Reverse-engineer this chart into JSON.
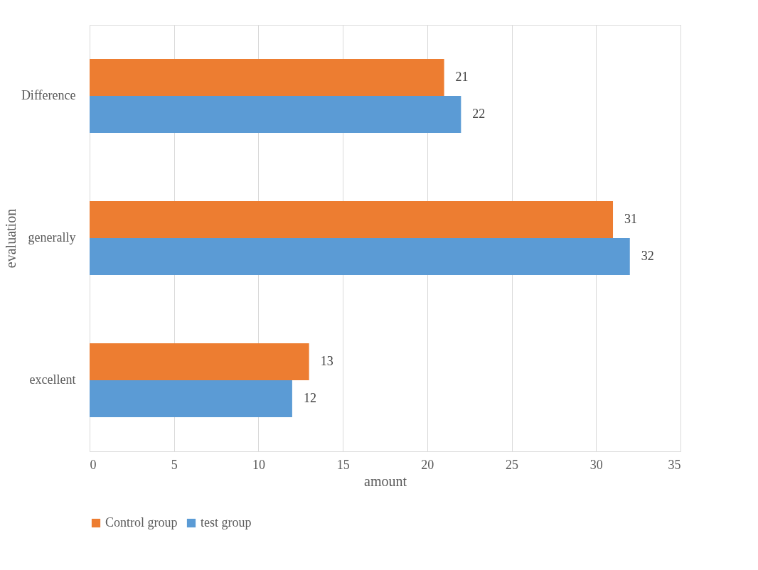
{
  "chart_data": {
    "type": "bar",
    "orientation": "horizontal",
    "xlabel": "amount",
    "ylabel": "evaluation",
    "categories": [
      "Difference",
      "generally",
      "excellent"
    ],
    "series": [
      {
        "name": "Control group",
        "color": "#ed7d31",
        "values": [
          21,
          31,
          13
        ]
      },
      {
        "name": "test group",
        "color": "#5b9bd5",
        "values": [
          22,
          32,
          12
        ]
      }
    ],
    "xlim": [
      0,
      35
    ],
    "xticks": [
      0,
      5,
      10,
      15,
      20,
      25,
      30,
      35
    ],
    "grid": "x",
    "legend": "bottom",
    "data_labels": true
  }
}
